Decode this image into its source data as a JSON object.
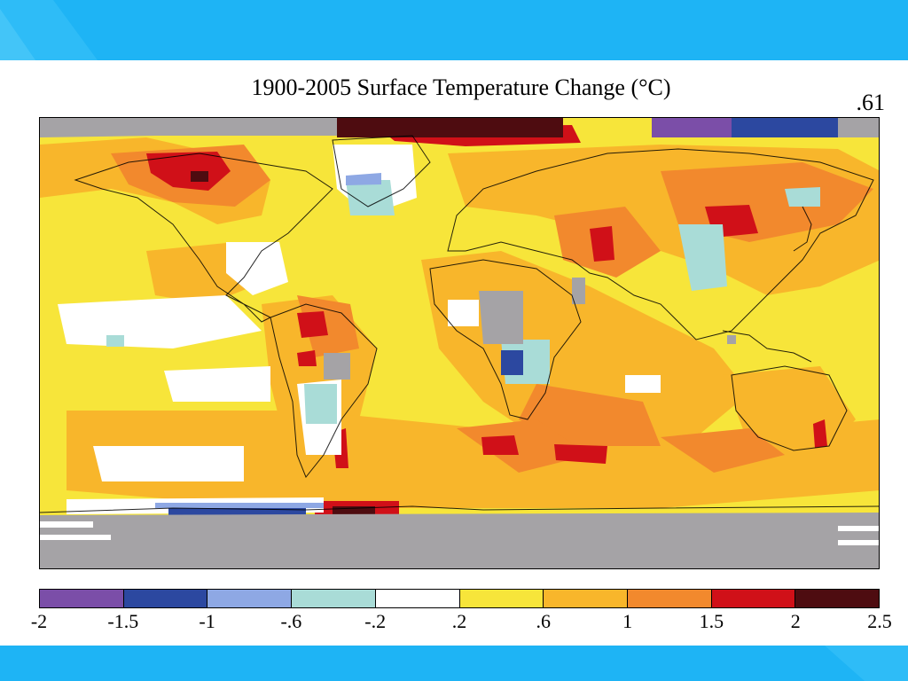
{
  "title": "1900-2005 Surface Temperature Change (°C)",
  "global_mean_label": ".61",
  "colors": {
    "slide_band": "#1eb4f5",
    "no_data": "#a5a3a6"
  },
  "chart_data": {
    "type": "heatmap",
    "title": "1900-2005 Surface Temperature Change (°C)",
    "units": "°C",
    "global_mean": 0.61,
    "colorbar": {
      "tick_labels": [
        "-2",
        "-1.5",
        "-1",
        "-.6",
        "-.2",
        ".2",
        ".6",
        "1",
        "1.5",
        "2",
        "2.5"
      ],
      "bins": [
        {
          "min": -2.0,
          "max": -1.5,
          "color": "#7b4ea8"
        },
        {
          "min": -1.5,
          "max": -1.0,
          "color": "#2c48a0"
        },
        {
          "min": -1.0,
          "max": -0.6,
          "color": "#8ea8e4"
        },
        {
          "min": -0.6,
          "max": -0.2,
          "color": "#a9dcd7"
        },
        {
          "min": -0.2,
          "max": 0.2,
          "color": "#ffffff"
        },
        {
          "min": 0.2,
          "max": 0.6,
          "color": "#f7e53a"
        },
        {
          "min": 0.6,
          "max": 1.0,
          "color": "#f8b62b"
        },
        {
          "min": 1.0,
          "max": 1.5,
          "color": "#f2892d"
        },
        {
          "min": 1.5,
          "max": 2.0,
          "color": "#d01018"
        },
        {
          "min": 2.0,
          "max": 2.5,
          "color": "#4e0c10"
        }
      ]
    }
  }
}
